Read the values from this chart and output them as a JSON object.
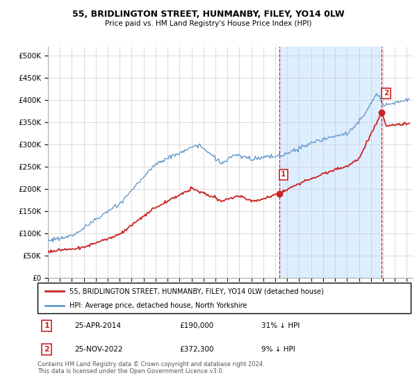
{
  "title": "55, BRIDLINGTON STREET, HUNMANBY, FILEY, YO14 0LW",
  "subtitle": "Price paid vs. HM Land Registry's House Price Index (HPI)",
  "hpi_color": "#6699cc",
  "price_color": "#cc2222",
  "dashed_vline_color": "#cc2222",
  "annotation_box_color": "#cc2222",
  "shade_color": "#ddeeff",
  "ylim": [
    0,
    520000
  ],
  "yticks": [
    0,
    50000,
    100000,
    150000,
    200000,
    250000,
    300000,
    350000,
    400000,
    450000,
    500000
  ],
  "ytick_labels": [
    "£0",
    "£50K",
    "£100K",
    "£150K",
    "£200K",
    "£250K",
    "£300K",
    "£350K",
    "£400K",
    "£450K",
    "£500K"
  ],
  "legend_line1": "55, BRIDLINGTON STREET, HUNMANBY, FILEY, YO14 0LW (detached house)",
  "legend_line2": "HPI: Average price, detached house, North Yorkshire",
  "table_row1": [
    "1",
    "25-APR-2014",
    "£190,000",
    "31% ↓ HPI"
  ],
  "table_row2": [
    "2",
    "25-NOV-2022",
    "£372,300",
    "9% ↓ HPI"
  ],
  "footer": "Contains HM Land Registry data © Crown copyright and database right 2024.\nThis data is licensed under the Open Government Licence v3.0.",
  "sale1_year": 2014.32,
  "sale2_year": 2022.9,
  "sale1_price": 190000,
  "sale2_price": 372300,
  "xmin": 1995,
  "xmax": 2025.5
}
